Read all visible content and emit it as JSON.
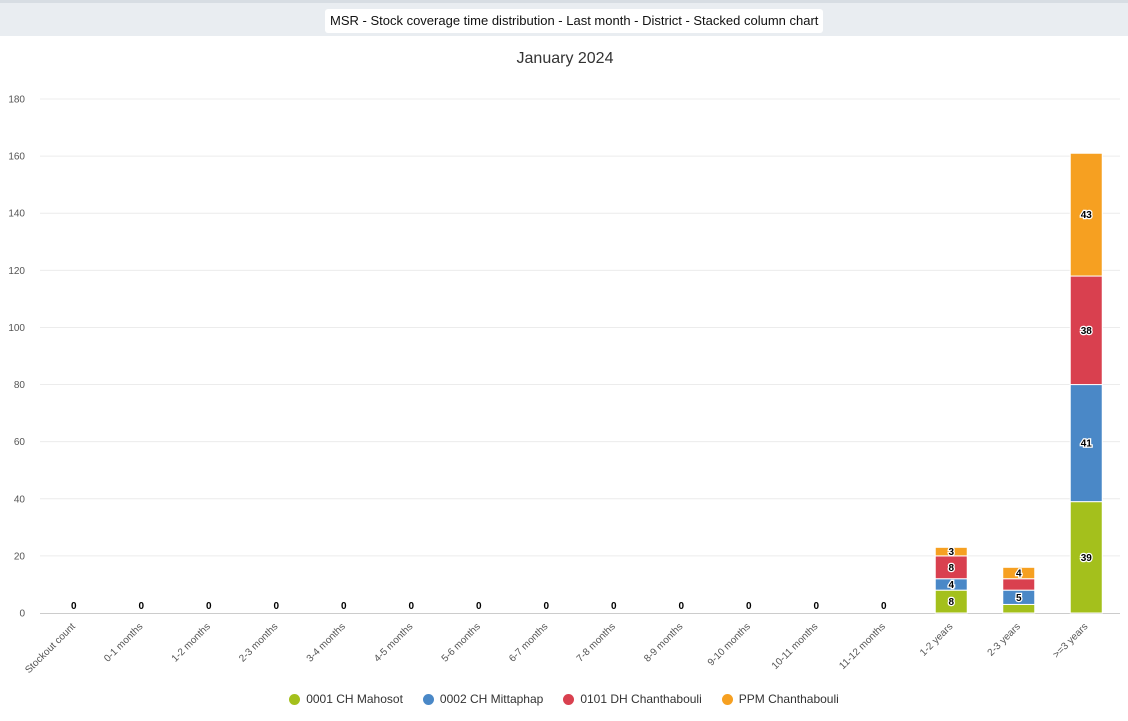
{
  "header": {
    "title": "MSR - Stock coverage time distribution - Last month - District - Stacked column chart"
  },
  "chart_data": {
    "type": "bar",
    "stacked": true,
    "title": "January 2024",
    "xlabel": "",
    "ylabel": "",
    "ylim": [
      0,
      180
    ],
    "yticks": [
      0,
      20,
      40,
      60,
      80,
      100,
      120,
      140,
      160,
      180
    ],
    "grid": true,
    "legend_position": "bottom",
    "categories": [
      "Stockout count",
      "0-1 months",
      "1-2 months",
      "2-3 months",
      "3-4 months",
      "4-5 months",
      "5-6 months",
      "6-7 months",
      "7-8 months",
      "8-9 months",
      "9-10 months",
      "10-11 months",
      "11-12 months",
      "1-2 years",
      "2-3 years",
      ">=3 years"
    ],
    "series": [
      {
        "name": "0001 CH Mahosot",
        "color": "#a4c01c",
        "values": [
          0,
          0,
          0,
          0,
          0,
          0,
          0,
          0,
          0,
          0,
          0,
          0,
          0,
          8,
          3,
          39
        ]
      },
      {
        "name": "0002 CH Mittaphap",
        "color": "#4a88c7",
        "values": [
          0,
          0,
          0,
          0,
          0,
          0,
          0,
          0,
          0,
          0,
          0,
          0,
          0,
          4,
          5,
          41
        ]
      },
      {
        "name": "0101 DH Chanthabouli",
        "color": "#d9404f",
        "values": [
          0,
          0,
          0,
          0,
          0,
          0,
          0,
          0,
          0,
          0,
          0,
          0,
          0,
          8,
          4,
          38
        ]
      },
      {
        "name": "PPM Chanthabouli",
        "color": "#f6a021",
        "values": [
          0,
          0,
          0,
          0,
          0,
          0,
          0,
          0,
          0,
          0,
          0,
          0,
          0,
          3,
          4,
          43
        ]
      }
    ],
    "data_labels": [
      [],
      [],
      [],
      [],
      [],
      [],
      [],
      [],
      [],
      [],
      [],
      [],
      [],
      [
        {
          "series": 0,
          "text": "8"
        },
        {
          "series": 1,
          "text": "4"
        },
        {
          "series": 2,
          "text": "8"
        },
        {
          "series": 3,
          "text": "3"
        }
      ],
      [
        {
          "series": 1,
          "text": "5"
        },
        {
          "series": 3,
          "text": "4"
        }
      ],
      [
        {
          "series": 0,
          "text": "39"
        },
        {
          "series": 1,
          "text": "41"
        },
        {
          "series": 2,
          "text": "38"
        },
        {
          "series": 3,
          "text": "43"
        }
      ]
    ],
    "zero_labels": [
      "0",
      "0",
      "0",
      "0",
      "0",
      "0",
      "0",
      "0",
      "0",
      "0",
      "0",
      "0",
      "0"
    ]
  }
}
